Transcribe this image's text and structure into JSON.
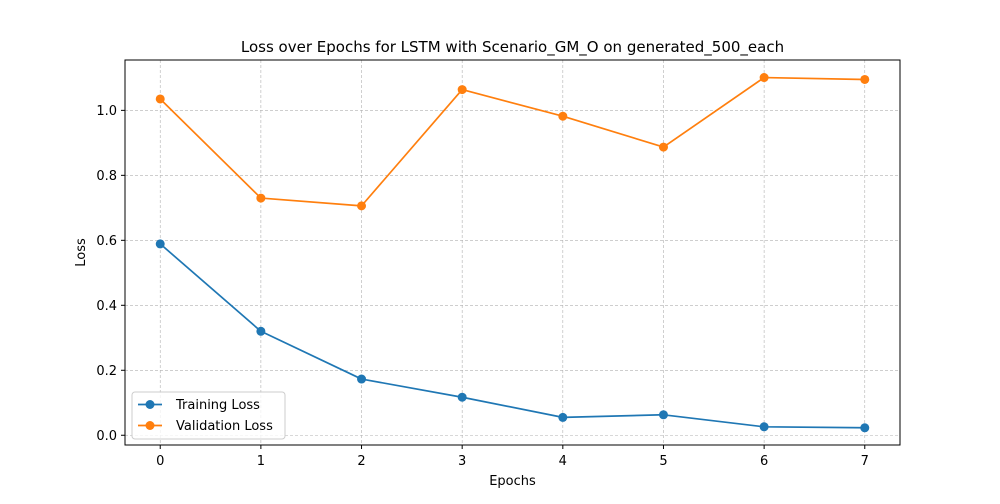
{
  "chart_data": {
    "type": "line",
    "title": "Loss over Epochs for LSTM with Scenario_GM_O on generated_500_each",
    "xlabel": "Epochs",
    "ylabel": "Loss",
    "x": [
      0,
      1,
      2,
      3,
      4,
      5,
      6,
      7
    ],
    "xlim": [
      -0.35,
      7.35
    ],
    "ylim": [
      -0.03,
      1.155
    ],
    "xticks": [
      "0",
      "1",
      "2",
      "3",
      "4",
      "5",
      "6",
      "7"
    ],
    "yticks": [
      "0.0",
      "0.2",
      "0.4",
      "0.6",
      "0.8",
      "1.0"
    ],
    "grid": true,
    "legend_position": "lower-left",
    "series": [
      {
        "name": "Training Loss",
        "color": "#1f77b4",
        "values": [
          0.589,
          0.32,
          0.173,
          0.117,
          0.055,
          0.063,
          0.026,
          0.023
        ]
      },
      {
        "name": "Validation Loss",
        "color": "#ff7f0e",
        "values": [
          1.035,
          0.73,
          0.706,
          1.064,
          0.982,
          0.887,
          1.101,
          1.095
        ]
      }
    ]
  }
}
